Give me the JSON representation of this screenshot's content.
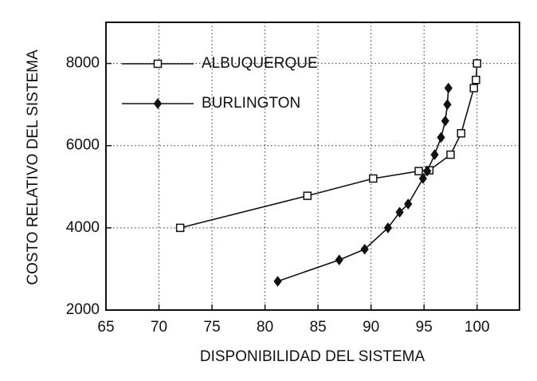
{
  "chart_data": {
    "type": "line",
    "xlabel": "DISPONIBILIDAD DEL SISTEMA",
    "ylabel": "COSTO RELATIVO DEL SISTEMA",
    "xlim": [
      65,
      104
    ],
    "ylim": [
      2000,
      9000
    ],
    "xticks": [
      65,
      70,
      75,
      80,
      85,
      90,
      95,
      100
    ],
    "yticks": [
      2000,
      4000,
      6000,
      8000
    ],
    "grid": true,
    "legend": "upper left",
    "series": [
      {
        "name": "ALBUQUERQUE",
        "color": "#111111",
        "marker": "square",
        "x": [
          72,
          84,
          90.2,
          94.5,
          95.5,
          97.5,
          98.5,
          99.7,
          99.9,
          100
        ],
        "values": [
          4000,
          4780,
          5200,
          5380,
          5400,
          5780,
          6300,
          7400,
          7600,
          8000
        ]
      },
      {
        "name": "BURLINGTON",
        "color": "#111111",
        "marker": "diamond",
        "x": [
          81.2,
          87,
          89.4,
          91.6,
          92.7,
          93.5,
          94.9,
          95.3,
          96,
          96.6,
          97,
          97.2,
          97.3
        ],
        "values": [
          2700,
          3220,
          3480,
          4000,
          4380,
          4580,
          5200,
          5380,
          5780,
          6200,
          6600,
          7000,
          7400
        ]
      }
    ]
  }
}
